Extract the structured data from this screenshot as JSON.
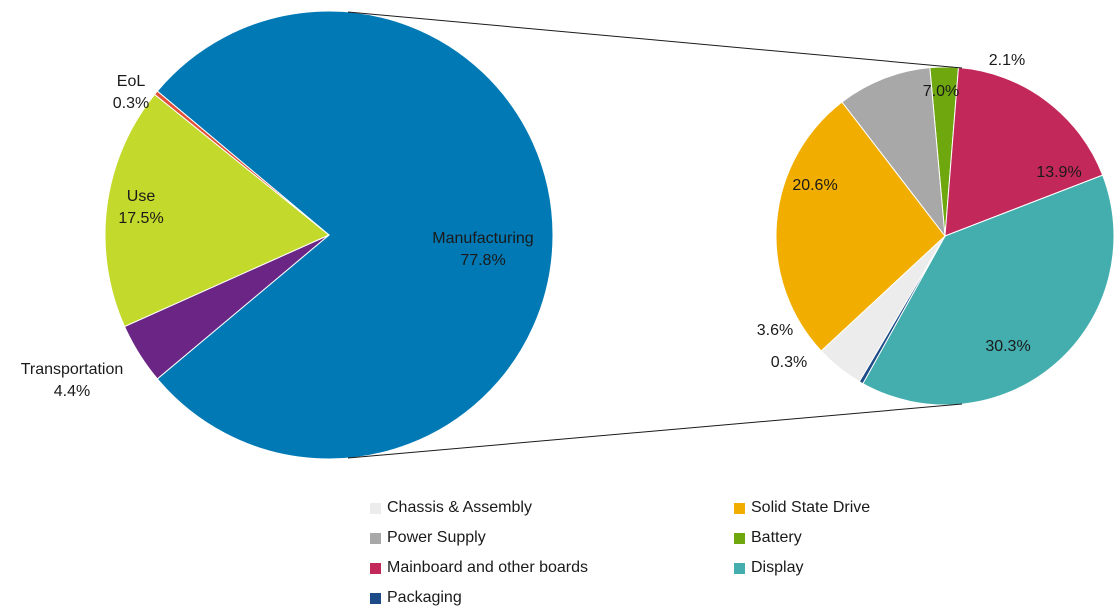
{
  "chart_data": [
    {
      "type": "pie",
      "slices": [
        {
          "name": "Manufacturing",
          "value": 77.8,
          "label": "77.8%",
          "color": "#0079b5"
        },
        {
          "name": "Transportation",
          "value": 4.4,
          "label": "4.4%",
          "color": "#6b2585"
        },
        {
          "name": "Use",
          "value": 17.5,
          "label": "17.5%",
          "color": "#c3d92c"
        },
        {
          "name": "EoL",
          "value": 0.3,
          "label": "0.3%",
          "color": "#e2503a"
        }
      ]
    },
    {
      "type": "pie",
      "exploded_from": "Manufacturing",
      "legend_position": "bottom",
      "slices": [
        {
          "name": "Battery",
          "value": 2.1,
          "label": "2.1%",
          "color": "#6ea70e"
        },
        {
          "name": "Mainboard and other boards",
          "value": 13.9,
          "label": "13.9%",
          "color": "#c2285a"
        },
        {
          "name": "Display",
          "value": 30.3,
          "label": "30.3%",
          "color": "#44aeae"
        },
        {
          "name": "Packaging",
          "value": 0.3,
          "label": "0.3%",
          "color": "#1d4b88"
        },
        {
          "name": "Chassis & Assembly",
          "value": 3.6,
          "label": "3.6%",
          "color": "#ececec"
        },
        {
          "name": "Solid State Drive",
          "value": 20.6,
          "label": "20.6%",
          "color": "#f2ae00"
        },
        {
          "name": "Power Supply",
          "value": 7.0,
          "label": "7.0%",
          "color": "#a8a8a8"
        }
      ],
      "legend": [
        {
          "name": "Chassis & Assembly",
          "color": "#ececec"
        },
        {
          "name": "Solid State Drive",
          "color": "#f2ae00"
        },
        {
          "name": "Power Supply",
          "color": "#a8a8a8"
        },
        {
          "name": "Battery",
          "color": "#6ea70e"
        },
        {
          "name": "Mainboard and other boards",
          "color": "#c2285a"
        },
        {
          "name": "Display",
          "color": "#44aeae"
        },
        {
          "name": "Packaging",
          "color": "#1d4b88"
        }
      ]
    }
  ]
}
